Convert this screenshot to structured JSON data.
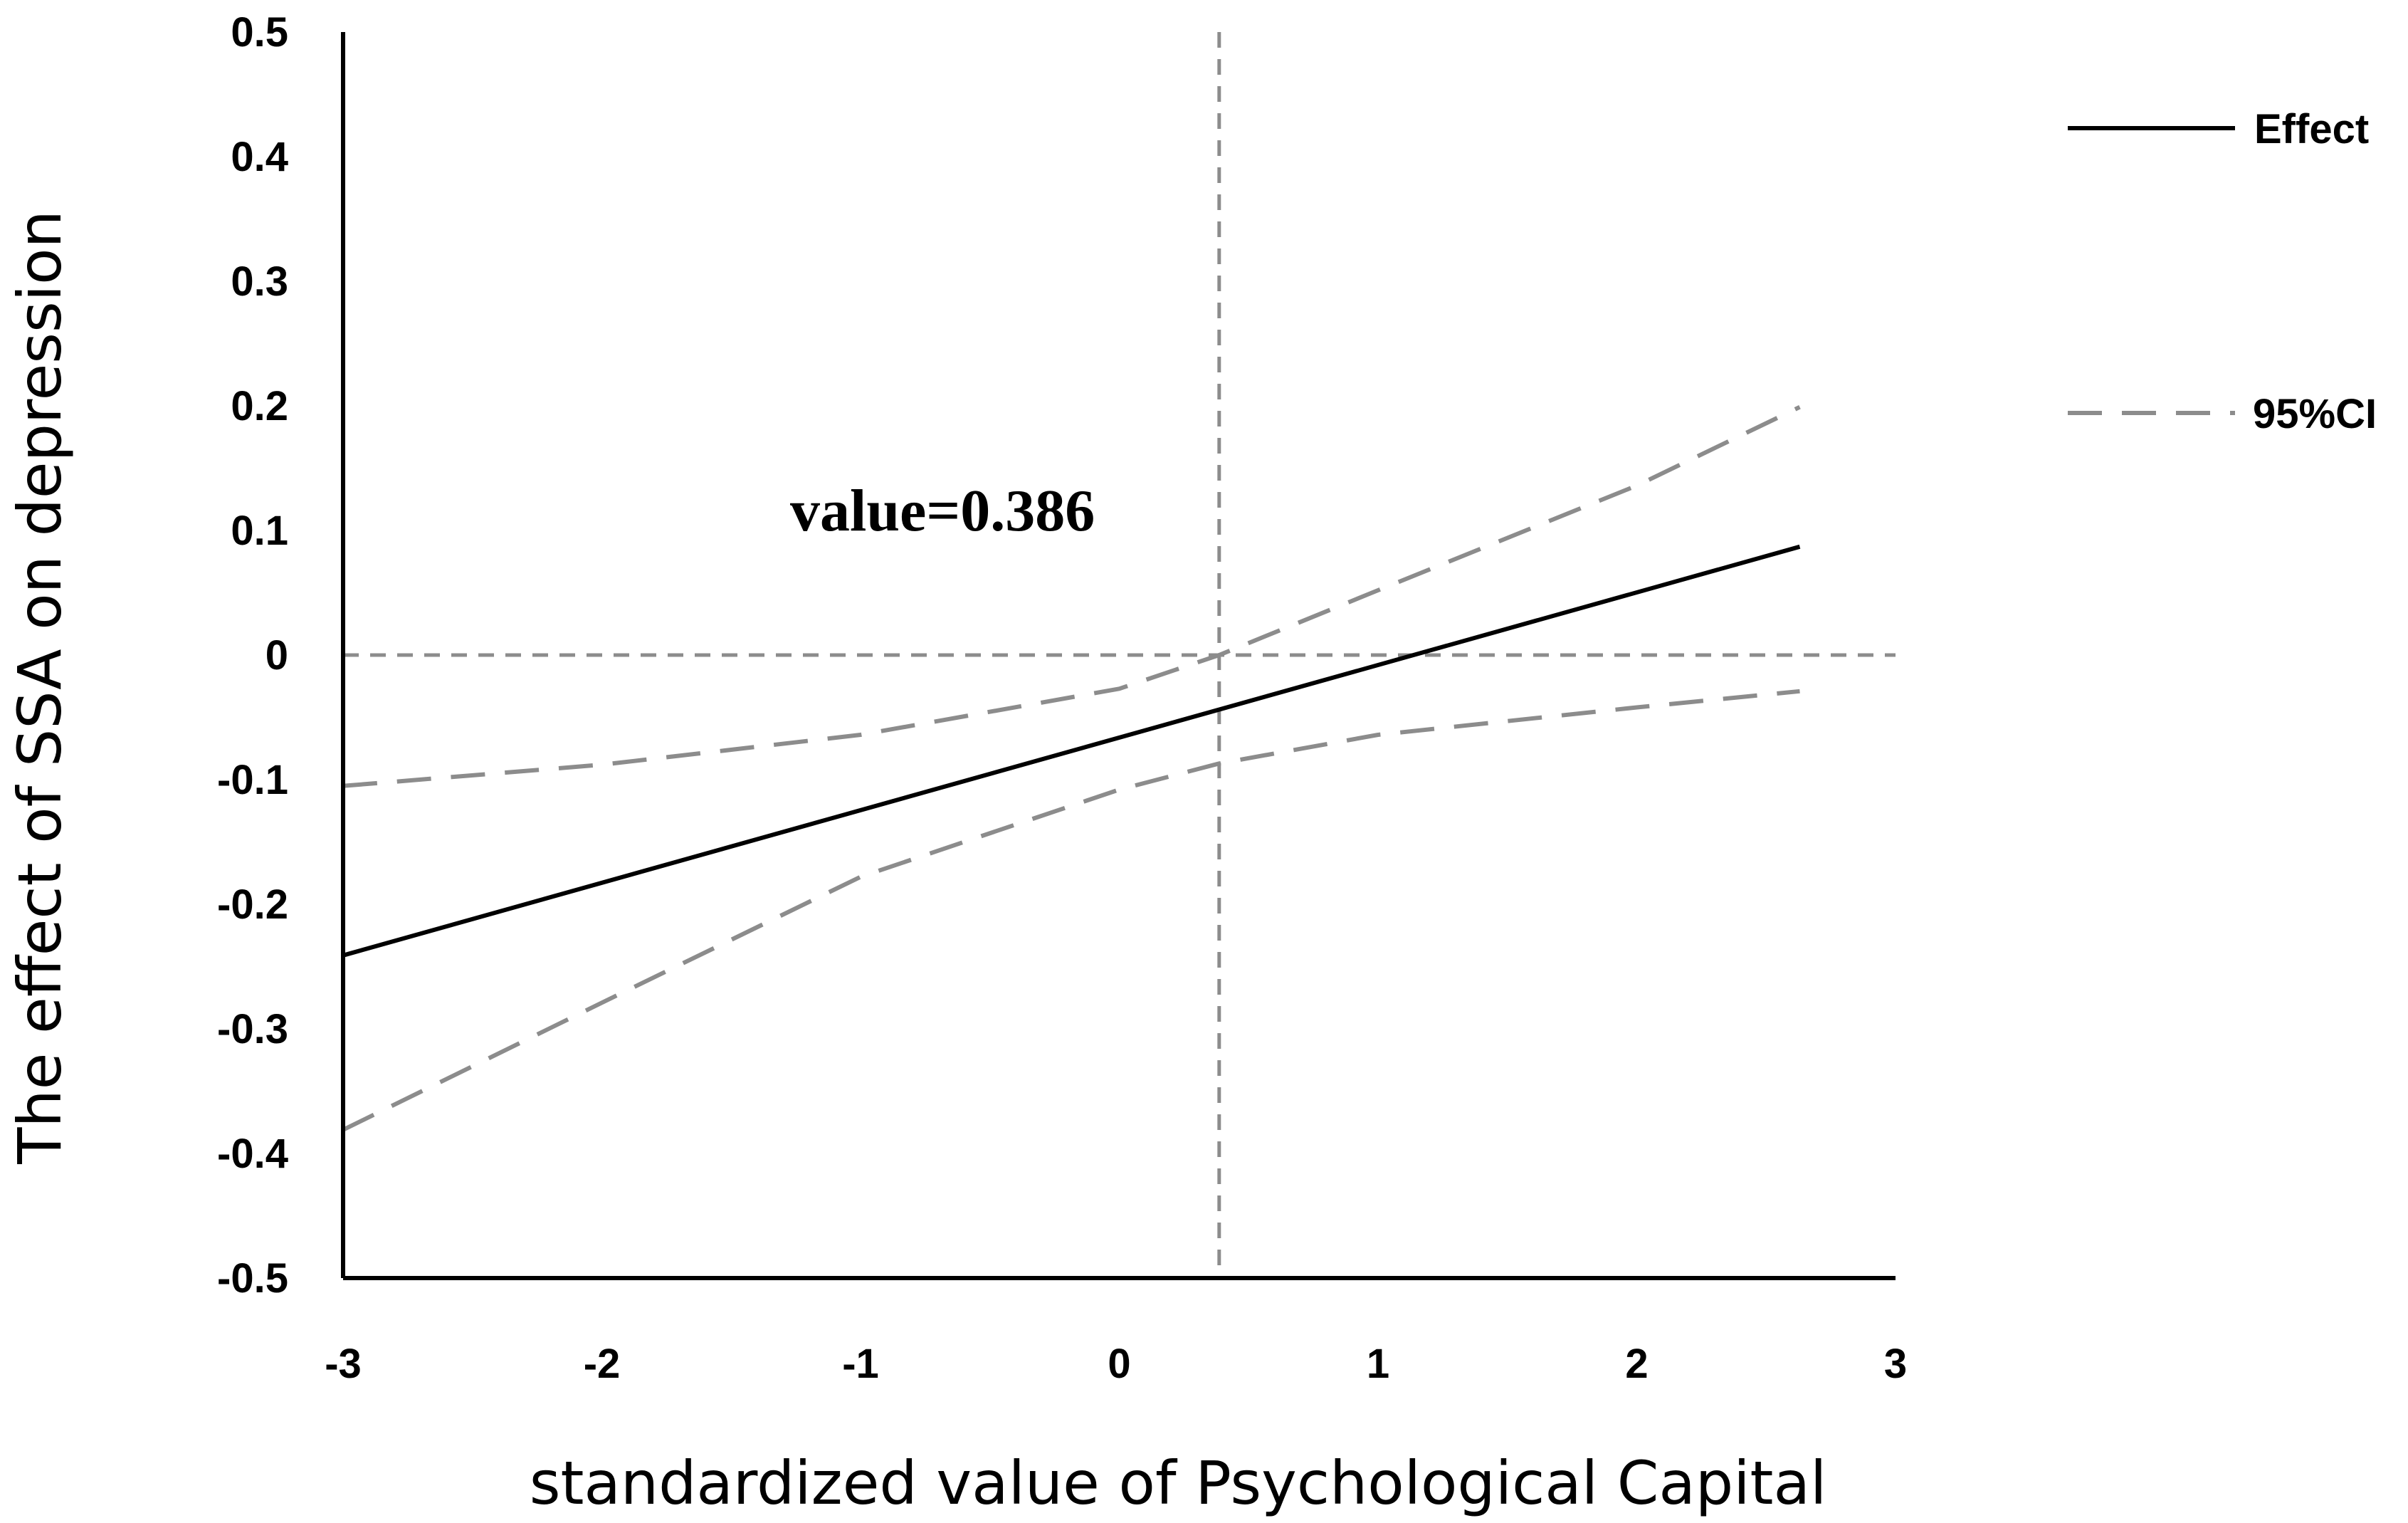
{
  "chart_data": {
    "type": "line",
    "title": "",
    "xlabel": "standardized value of Psychological Capital",
    "ylabel": "The effect of SSA on depression",
    "xlim": [
      -3,
      3
    ],
    "ylim": [
      -0.5,
      0.5
    ],
    "xticks": [
      "-3",
      "-2",
      "-1",
      "0",
      "1",
      "2",
      "3"
    ],
    "yticks": [
      "0.5",
      "0.4",
      "0.3",
      "0.2",
      "0.1",
      "0",
      "-0.1",
      "-0.2",
      "-0.3",
      "-0.4",
      "-0.5"
    ],
    "grid": false,
    "legend_position": "right",
    "colors": {
      "effect": "#000000",
      "ci": "#8c8c8c",
      "ref": "#8c8c8c"
    },
    "series": [
      {
        "name": "Effect",
        "style": "solid",
        "x": [
          -3,
          2.63
        ],
        "y": [
          -0.241,
          0.087
        ]
      },
      {
        "name": "95%CI",
        "style": "dashed",
        "x": [
          -3,
          -2,
          -1,
          0,
          0.386,
          1,
          2,
          2.63
        ],
        "y": [
          -0.105,
          -0.088,
          -0.064,
          -0.027,
          0.0,
          0.052,
          0.136,
          0.199
        ]
      },
      {
        "name": "",
        "style": "dashed",
        "x": [
          -3,
          -2,
          -1,
          0,
          0.386,
          1,
          2,
          2.63
        ],
        "y": [
          -0.381,
          -0.279,
          -0.178,
          -0.108,
          -0.087,
          -0.064,
          -0.042,
          -0.029
        ]
      }
    ],
    "reference_lines": {
      "x": 0.386,
      "y": 0
    },
    "annotation": "value=0.386"
  }
}
